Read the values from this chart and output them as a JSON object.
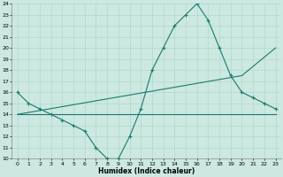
{
  "xlabel": "Humidex (Indice chaleur)",
  "bg_color": "#cce8e0",
  "line_color": "#1a7a6e",
  "xlim": [
    -0.5,
    23.5
  ],
  "ylim": [
    10,
    24
  ],
  "xticks": [
    0,
    1,
    2,
    3,
    4,
    5,
    6,
    7,
    8,
    9,
    10,
    11,
    12,
    13,
    14,
    15,
    16,
    17,
    18,
    19,
    20,
    21,
    22,
    23
  ],
  "yticks": [
    10,
    11,
    12,
    13,
    14,
    15,
    16,
    17,
    18,
    19,
    20,
    21,
    22,
    23,
    24
  ],
  "line1_x": [
    0,
    1,
    2,
    3,
    4,
    5,
    6,
    7,
    8,
    9,
    10,
    11,
    12,
    13,
    14,
    15,
    16,
    17,
    18,
    19,
    20,
    21,
    22,
    23
  ],
  "line1_y": [
    16,
    15,
    14.5,
    14,
    13.5,
    13,
    12.5,
    11,
    10,
    10,
    12,
    14.5,
    18,
    20,
    22,
    23,
    24,
    22.5,
    20,
    17.5,
    16,
    15.5,
    15,
    14.5
  ],
  "line2_x": [
    0,
    23
  ],
  "line2_y": [
    14,
    14
  ],
  "line3_x": [
    0,
    20,
    23
  ],
  "line3_y": [
    14,
    17.5,
    20
  ]
}
